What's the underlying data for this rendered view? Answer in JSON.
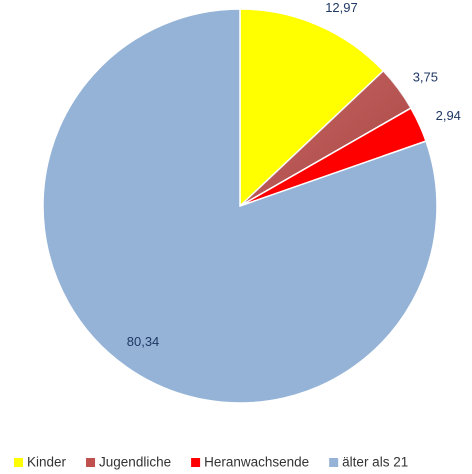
{
  "chart_data": {
    "type": "pie",
    "categories": [
      "Kinder",
      "Jugendliche",
      "Heranwachsende",
      "älter als 21"
    ],
    "values": [
      12.97,
      3.75,
      2.94,
      80.34
    ],
    "value_labels": [
      "12,97",
      "3,75",
      "2,94",
      "80,34"
    ],
    "colors": [
      "#ffff00",
      "#c0504d",
      "#ff0000",
      "#95b3d7"
    ],
    "legend": "bottom"
  }
}
